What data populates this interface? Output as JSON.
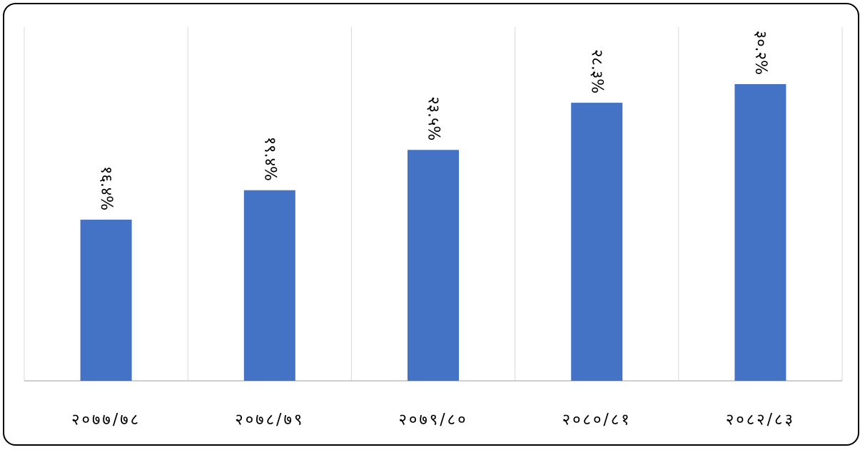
{
  "chart_data": {
    "type": "bar",
    "categories": [
      "२०७७/७८",
      "२०७८/७९",
      "२०७९/८०",
      "२०८०/८१",
      "२०८२/८३"
    ],
    "values": [
      16.4,
      19.4,
      23.5,
      28.3,
      30.2
    ],
    "data_labels": [
      "१६.४%",
      "१९.४%",
      "२३.५%",
      "२८.३%",
      "३०.२%"
    ],
    "ylim": [
      0,
      36
    ],
    "bar_color": "#4472C4",
    "gridline_color": "#D9D9D9",
    "axis_color": "#BFBFBF",
    "grid": "vertical category separators",
    "legend": "none"
  }
}
